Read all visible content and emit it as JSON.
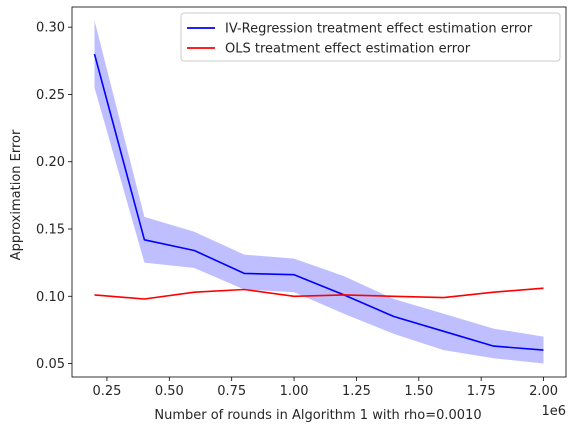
{
  "chart_data": {
    "type": "line",
    "title": "",
    "xlabel": "Number of rounds in Algorithm 1 with rho=0.0010",
    "ylabel": "Approximation Error",
    "x_offset_label": "1e6",
    "x": [
      0.2,
      0.4,
      0.6,
      0.8,
      1.0,
      1.2,
      1.4,
      1.6,
      1.8,
      2.0
    ],
    "xlim": [
      0.11,
      2.09
    ],
    "ylim": [
      0.04,
      0.315
    ],
    "xticks": [
      0.25,
      0.5,
      0.75,
      1.0,
      1.25,
      1.5,
      1.75,
      2.0
    ],
    "xtick_labels": [
      "0.25",
      "0.50",
      "0.75",
      "1.00",
      "1.25",
      "1.50",
      "1.75",
      "2.00"
    ],
    "yticks": [
      0.05,
      0.1,
      0.15,
      0.2,
      0.25,
      0.3
    ],
    "ytick_labels": [
      "0.05",
      "0.10",
      "0.15",
      "0.20",
      "0.25",
      "0.30"
    ],
    "grid": false,
    "legend_position": "top-right",
    "series": [
      {
        "name": "IV-Regression treatment effect estimation error",
        "color": "#0000ff",
        "values": [
          0.28,
          0.142,
          0.134,
          0.117,
          0.116,
          0.101,
          0.085,
          0.074,
          0.063,
          0.06
        ],
        "band_low": [
          0.255,
          0.125,
          0.121,
          0.105,
          0.103,
          0.087,
          0.072,
          0.06,
          0.054,
          0.05
        ],
        "band_high": [
          0.305,
          0.159,
          0.148,
          0.131,
          0.128,
          0.115,
          0.098,
          0.087,
          0.076,
          0.07
        ],
        "band_color": "#aaaaff"
      },
      {
        "name": "OLS treatment effect estimation error",
        "color": "#ff0000",
        "values": [
          0.101,
          0.098,
          0.103,
          0.105,
          0.1,
          0.101,
          0.1,
          0.099,
          0.103,
          0.106
        ]
      }
    ]
  }
}
